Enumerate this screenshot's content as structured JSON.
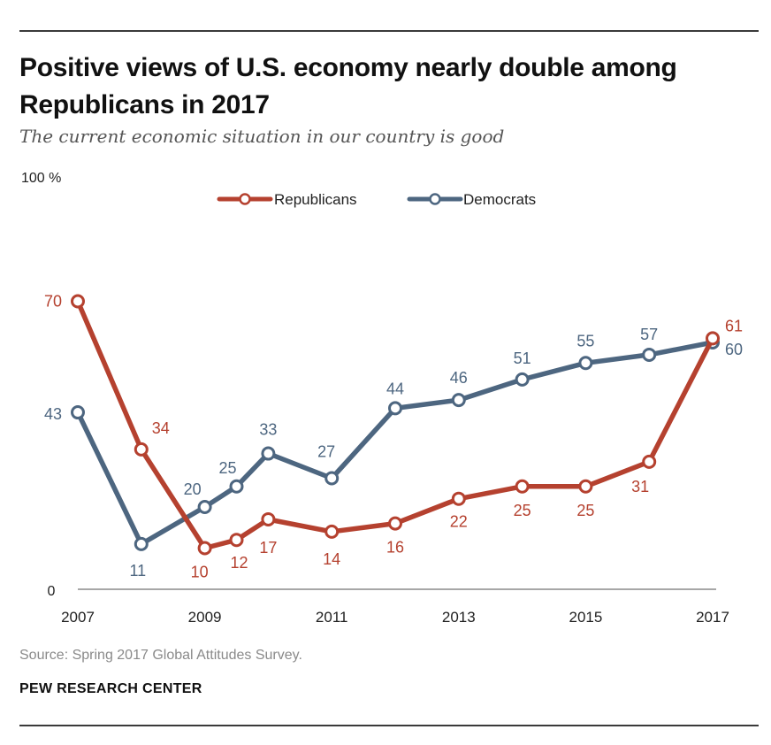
{
  "header": {
    "title": "Positive views of U.S. economy nearly double among Republicans in 2017",
    "subtitle": "The current economic situation in our country is good"
  },
  "footer": {
    "source": "Source: Spring 2017 Global Attitudes Survey.",
    "org": "PEW RESEARCH CENTER"
  },
  "colors": {
    "republicans": "#b5412f",
    "democrats": "#4d6680",
    "axis": "#8a8a8a",
    "text": "#222222"
  },
  "chart_data": {
    "type": "line",
    "title": "Positive views of U.S. economy nearly double among Republicans in 2017",
    "subtitle": "The current economic situation in our country is good",
    "y_top_label": "100 %",
    "y_zero_label": "0",
    "ylim": [
      0,
      100
    ],
    "x_ticks": [
      "2007",
      "2009",
      "2011",
      "2013",
      "2015",
      "2017"
    ],
    "xlim": [
      2007,
      2017
    ],
    "grid": false,
    "legend_position": "top-center",
    "series": [
      {
        "name": "Republicans",
        "x": [
          2007,
          2008,
          2009,
          2009.5,
          2010,
          2011,
          2012,
          2013,
          2014,
          2015,
          2016,
          2017
        ],
        "values": [
          70,
          34,
          10,
          12,
          17,
          14,
          16,
          22,
          25,
          25,
          31,
          61
        ]
      },
      {
        "name": "Democrats",
        "x": [
          2007,
          2008,
          2009,
          2009.5,
          2010,
          2011,
          2012,
          2013,
          2014,
          2015,
          2016,
          2017
        ],
        "values": [
          43,
          11,
          20,
          25,
          33,
          27,
          44,
          46,
          51,
          55,
          57,
          60
        ]
      }
    ]
  }
}
